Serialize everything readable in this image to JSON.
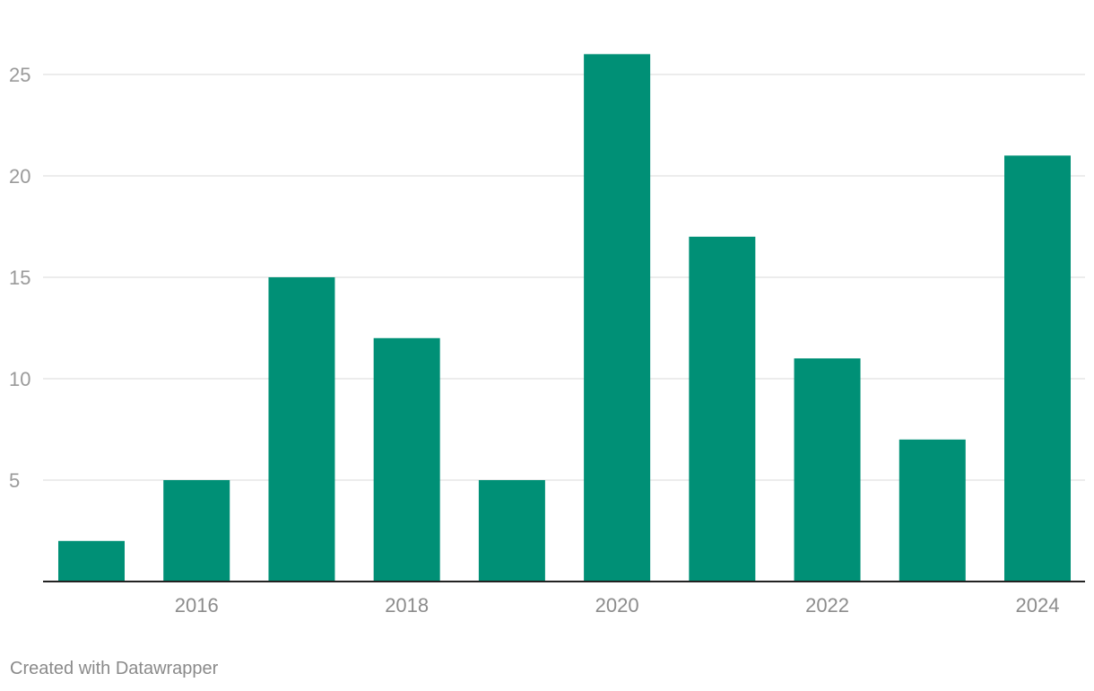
{
  "chart_data": {
    "type": "bar",
    "categories": [
      "2015",
      "2016",
      "2017",
      "2018",
      "2019",
      "2020",
      "2021",
      "2022",
      "2023",
      "2024"
    ],
    "values": [
      2,
      5,
      15,
      12,
      5,
      26,
      17,
      11,
      7,
      21
    ],
    "x_tick_labels": [
      "2016",
      "2018",
      "2020",
      "2022",
      "2024"
    ],
    "y_ticks": [
      5,
      10,
      15,
      20,
      25
    ],
    "ylim": [
      0,
      26.9
    ],
    "grid": true,
    "legend": "none",
    "bar_color": "#009076"
  },
  "credit": "Created with Datawrapper"
}
